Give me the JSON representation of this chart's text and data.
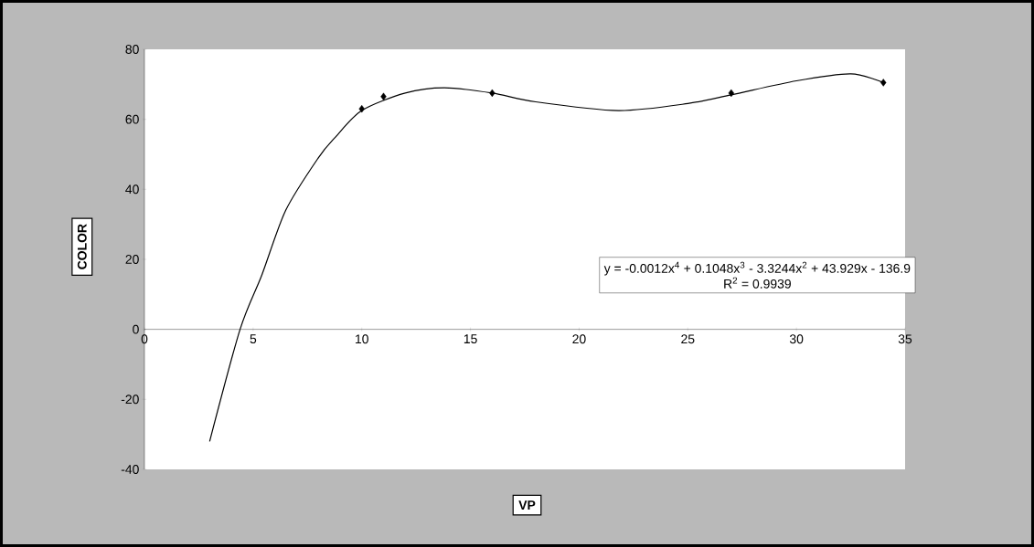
{
  "chart_data": {
    "type": "scatter",
    "xlabel": "VP",
    "ylabel": "COLOR",
    "series": [
      {
        "color": "#000000",
        "x": [
          10,
          11,
          16,
          27,
          34
        ],
        "values": [
          63,
          66.5,
          67.5,
          67.5,
          70.5
        ],
        "marker": "diamond"
      },
      {
        "type": "line",
        "color": "#000000",
        "x": [
          3,
          4.4,
          5.4,
          6.5,
          8,
          8.8,
          10,
          12,
          13.8,
          16,
          18,
          21.8,
          25,
          27,
          30,
          32.5,
          34
        ],
        "values": [
          -32,
          0,
          15.5,
          34,
          49,
          55,
          62.5,
          67.5,
          69,
          67.5,
          65,
          62.5,
          64.5,
          67,
          71,
          73,
          70.5
        ],
        "marker": "none"
      }
    ],
    "annotations": [
      "y = -0.0012x$^{4}$ + 0.1048x$^{3}$ - 3.3244x$^{2}$ + 43.929x - 136.9",
      "R$^{2}$ = 0.9939"
    ],
    "xlim": [
      0,
      35
    ],
    "xticks": [
      0,
      5,
      10,
      15,
      20,
      25,
      30,
      35
    ],
    "ylim": [
      -40,
      80
    ],
    "yticks": [
      -40,
      -20,
      0,
      20,
      40,
      60,
      80
    ],
    "grid": false
  }
}
